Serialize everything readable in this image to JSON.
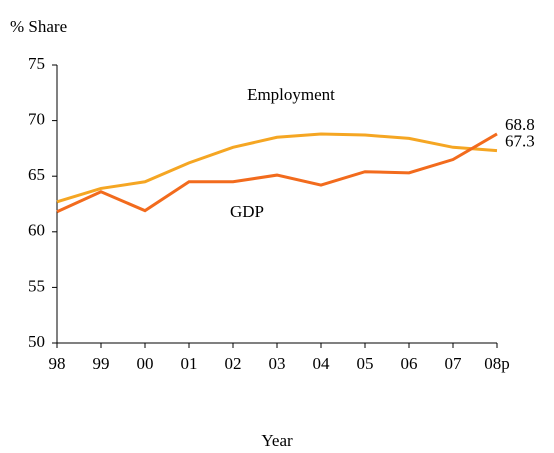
{
  "chart_data": {
    "type": "line",
    "y_label": "% Share",
    "x_label": "Year",
    "categories": [
      "98",
      "99",
      "00",
      "01",
      "02",
      "03",
      "04",
      "05",
      "06",
      "07",
      "08p"
    ],
    "series": [
      {
        "name": "Employment",
        "color": "#f5a623",
        "values": [
          62.7,
          63.9,
          64.5,
          66.2,
          67.6,
          68.5,
          68.8,
          68.7,
          68.4,
          67.6,
          67.3
        ],
        "value_labels": [
          null,
          null,
          null,
          null,
          null,
          null,
          null,
          null,
          null,
          null,
          "67.3"
        ]
      },
      {
        "name": "GDP",
        "color": "#f26b1d",
        "values": [
          61.8,
          63.6,
          61.9,
          64.5,
          64.5,
          65.1,
          64.2,
          65.4,
          65.3,
          66.5,
          68.8
        ],
        "value_labels": [
          null,
          null,
          null,
          null,
          null,
          null,
          null,
          null,
          null,
          null,
          "68.8"
        ]
      }
    ],
    "ylim": [
      50,
      75
    ],
    "yticks": [
      50,
      55,
      60,
      65,
      70,
      75
    ],
    "grid": false
  }
}
